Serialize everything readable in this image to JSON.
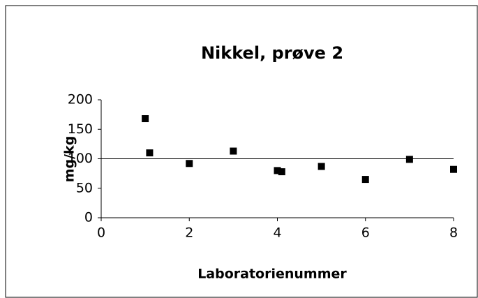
{
  "chart_data": {
    "type": "scatter",
    "title": "Nikkel, prøve 2",
    "x_label": "Laboratorienummer",
    "y_label": "mg/kg",
    "series": [
      {
        "color": "#000000",
        "x": [
          1,
          1.1,
          2,
          3,
          4,
          4.1,
          5,
          6,
          7,
          8
        ],
        "values": [
          168,
          110,
          92,
          113,
          80,
          78,
          87,
          65,
          99,
          82
        ]
      }
    ],
    "reference_line": {
      "x": [
        0,
        8
      ],
      "values": [
        100,
        100
      ]
    },
    "xlim": [
      0,
      8
    ],
    "xticks": [
      0,
      2,
      4,
      6,
      8
    ],
    "ylim": [
      0,
      200
    ],
    "yticks": [
      0,
      50,
      100,
      150,
      200
    ]
  }
}
